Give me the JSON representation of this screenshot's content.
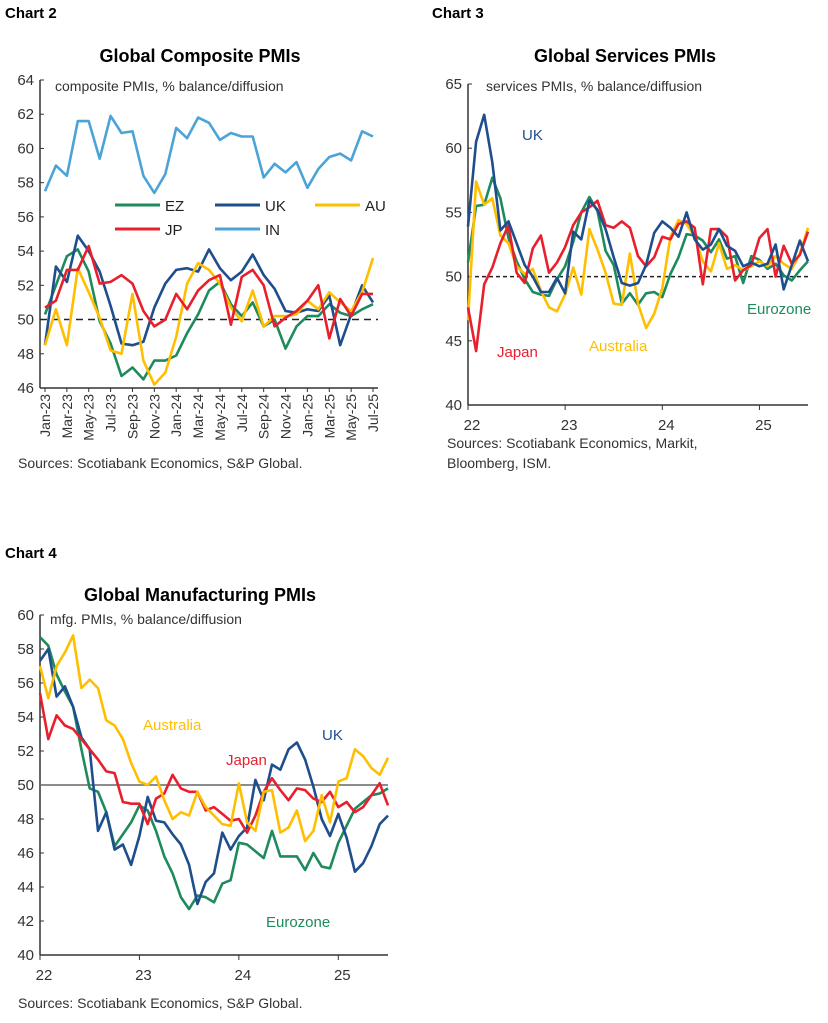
{
  "colors": {
    "EZ": "#1f8a5c",
    "UK": "#1f4e8c",
    "AU": "#ffbf00",
    "JP": "#e8202e",
    "IN": "#4ba3d8",
    "axis": "#333333",
    "ref": "#555555"
  },
  "chart_data": [
    {
      "chart_label": "Chart 2",
      "type": "line",
      "title": "Global Composite PMIs",
      "subtitle": "composite PMIs, % balance/diffusion",
      "source": "Sources: Scotiabank Economics, S&P Global.",
      "ylim": [
        46,
        64
      ],
      "yticks": [
        46,
        48,
        50,
        52,
        54,
        56,
        58,
        60,
        62,
        64
      ],
      "x": [
        "Jan-23",
        "Feb-23",
        "Mar-23",
        "Apr-23",
        "May-23",
        "Jun-23",
        "Jul-23",
        "Aug-23",
        "Sep-23",
        "Oct-23",
        "Nov-23",
        "Dec-23",
        "Jan-24",
        "Feb-24",
        "Mar-24",
        "Apr-24",
        "May-24",
        "Jun-24",
        "Jul-24",
        "Aug-24",
        "Sep-24",
        "Oct-24",
        "Nov-24",
        "Dec-24",
        "Jan-25",
        "Feb-25",
        "Mar-25",
        "Apr-25",
        "May-25",
        "Jun-25",
        "Jul-25"
      ],
      "xtick_labels": [
        "Jan-23",
        "Mar-23",
        "May-23",
        "Jul-23",
        "Sep-23",
        "Nov-23",
        "Jan-24",
        "Mar-24",
        "May-24",
        "Jul-24",
        "Sep-24",
        "Nov-24",
        "Jan-25",
        "Mar-25",
        "May-25",
        "Jul-25"
      ],
      "reference_line": 50,
      "legend": "inside",
      "series": [
        {
          "name": "IN",
          "color_key": "IN",
          "values": [
            57.5,
            59.0,
            58.4,
            61.6,
            61.6,
            59.4,
            61.9,
            60.9,
            61.0,
            58.4,
            57.4,
            58.5,
            61.2,
            60.6,
            61.8,
            61.5,
            60.5,
            60.9,
            60.7,
            60.7,
            58.3,
            59.1,
            58.6,
            59.2,
            57.7,
            58.8,
            59.5,
            59.7,
            59.3,
            61.0,
            60.7
          ]
        },
        {
          "name": "EZ",
          "color_key": "EZ",
          "values": [
            50.3,
            52.0,
            53.7,
            54.1,
            52.8,
            49.9,
            48.6,
            46.7,
            47.2,
            46.5,
            47.6,
            47.6,
            47.9,
            49.2,
            50.3,
            51.7,
            52.2,
            50.9,
            50.2,
            51.0,
            49.6,
            50.0,
            48.3,
            49.6,
            50.2,
            50.2,
            50.9,
            50.4,
            50.2,
            50.6,
            50.9
          ]
        },
        {
          "name": "UK",
          "color_key": "UK",
          "values": [
            48.5,
            53.1,
            52.2,
            54.9,
            54.0,
            52.8,
            50.8,
            48.6,
            48.5,
            48.7,
            50.7,
            52.1,
            52.9,
            53.0,
            52.8,
            54.1,
            53.0,
            52.3,
            52.8,
            53.8,
            52.6,
            51.8,
            50.5,
            50.4,
            50.6,
            50.5,
            51.4,
            48.5,
            50.3,
            52.0,
            51.0
          ]
        },
        {
          "name": "AU",
          "color_key": "AU",
          "values": [
            48.5,
            50.6,
            48.5,
            53.0,
            51.6,
            50.1,
            48.2,
            48.0,
            51.5,
            47.6,
            46.2,
            46.9,
            49.0,
            52.1,
            53.3,
            52.9,
            52.1,
            50.7,
            49.9,
            51.7,
            49.6,
            50.2,
            50.2,
            50.3,
            51.1,
            50.6,
            51.6,
            51.0,
            50.5,
            51.6,
            53.6
          ]
        },
        {
          "name": "JP",
          "color_key": "JP",
          "values": [
            50.7,
            51.1,
            52.9,
            52.9,
            54.3,
            52.1,
            52.2,
            52.6,
            52.1,
            50.5,
            49.6,
            50.0,
            51.5,
            50.6,
            51.7,
            52.3,
            52.6,
            49.7,
            52.5,
            52.9,
            52.0,
            49.6,
            50.1,
            50.5,
            51.1,
            52.0,
            48.9,
            51.2,
            50.2,
            51.5,
            51.5
          ]
        }
      ],
      "legend_entries": [
        "EZ",
        "UK",
        "AU",
        "JP",
        "IN"
      ]
    },
    {
      "chart_label": "Chart 3",
      "type": "line",
      "title": "Global Services PMIs",
      "subtitle": "services PMIs, % balance/diffusion",
      "source": "Sources: Scotiabank Economics, Markit,",
      "source2": "Bloomberg, ISM.",
      "ylim": [
        40,
        65
      ],
      "yticks": [
        40,
        45,
        50,
        55,
        60,
        65
      ],
      "x_start": "Jan-22",
      "x_end": "Jul-25",
      "frequency": "monthly",
      "xtick_labels": [
        "22",
        "23",
        "24",
        "25"
      ],
      "reference_line": 50,
      "series": [
        {
          "name": "Eurozone",
          "color_key": "EZ",
          "values": [
            51.1,
            55.5,
            55.6,
            57.7,
            56.1,
            53.0,
            51.2,
            49.8,
            48.8,
            48.6,
            48.5,
            49.8,
            50.8,
            52.7,
            55.0,
            56.2,
            55.1,
            52.0,
            50.9,
            47.9,
            48.7,
            47.8,
            48.7,
            48.8,
            48.4,
            50.2,
            51.5,
            53.3,
            53.2,
            52.8,
            51.9,
            52.9,
            51.4,
            51.6,
            49.5,
            51.6,
            51.3,
            50.6,
            51.0,
            50.1,
            49.7,
            50.5,
            51.2
          ]
        },
        {
          "name": "Australia",
          "color_key": "AU",
          "values": [
            46.6,
            57.4,
            55.6,
            56.1,
            53.2,
            52.6,
            50.8,
            50.2,
            50.6,
            48.9,
            47.6,
            47.3,
            48.6,
            50.7,
            48.6,
            53.7,
            52.1,
            50.3,
            47.9,
            47.8,
            51.8,
            47.9,
            46.0,
            47.1,
            49.1,
            53.1,
            54.4,
            54.1,
            53.1,
            51.2,
            50.4,
            52.6,
            50.6,
            50.9,
            50.5,
            50.8,
            51.2,
            50.8,
            51.6,
            51.0,
            50.6,
            51.8,
            53.8
          ]
        },
        {
          "name": "Japan",
          "color_key": "JP",
          "values": [
            47.6,
            44.2,
            49.4,
            50.7,
            52.6,
            54.0,
            50.3,
            49.5,
            52.2,
            53.2,
            50.3,
            51.1,
            52.3,
            54.0,
            55.0,
            55.4,
            55.9,
            54.0,
            53.8,
            54.3,
            53.8,
            51.6,
            50.8,
            51.5,
            53.1,
            52.9,
            54.1,
            54.3,
            53.8,
            49.4,
            53.7,
            53.7,
            53.1,
            49.7,
            50.5,
            50.9,
            53.0,
            53.7,
            50.0,
            52.4,
            51.0,
            51.7,
            53.5
          ]
        },
        {
          "name": "UK",
          "color_key": "UK",
          "values": [
            53.9,
            60.5,
            62.6,
            58.9,
            53.6,
            54.3,
            52.6,
            50.9,
            50.0,
            48.8,
            48.8,
            49.9,
            48.7,
            53.5,
            52.9,
            55.9,
            55.2,
            53.7,
            51.5,
            49.5,
            49.3,
            49.5,
            50.9,
            53.4,
            54.3,
            53.8,
            53.1,
            55.0,
            52.9,
            52.1,
            52.5,
            53.7,
            52.4,
            52.0,
            50.8,
            51.1,
            50.8,
            51.0,
            52.5,
            49.0,
            50.9,
            52.8,
            51.2
          ]
        }
      ]
    },
    {
      "chart_label": "Chart 4",
      "type": "line",
      "title": "Global Manufacturing PMIs",
      "subtitle": "mfg. PMIs, % balance/diffusion",
      "source": "Sources: Scotiabank Economics, S&P Global.",
      "ylim": [
        40,
        60
      ],
      "yticks": [
        40,
        42,
        44,
        46,
        48,
        50,
        52,
        54,
        56,
        58,
        60
      ],
      "x_start": "Jan-22",
      "x_end": "Jul-25",
      "frequency": "monthly",
      "xtick_labels": [
        "22",
        "23",
        "24",
        "25"
      ],
      "reference_line": 50,
      "series": [
        {
          "name": "Eurozone",
          "color_key": "EZ",
          "values": [
            58.7,
            58.2,
            56.5,
            55.5,
            54.6,
            52.1,
            49.8,
            49.6,
            48.4,
            46.4,
            47.1,
            47.8,
            48.8,
            48.5,
            47.3,
            45.8,
            44.8,
            43.4,
            42.7,
            43.5,
            43.4,
            43.1,
            44.2,
            44.4,
            46.6,
            46.5,
            46.1,
            45.7,
            47.3,
            45.8,
            45.8,
            45.8,
            45.0,
            46.0,
            45.2,
            45.1,
            46.6,
            47.6,
            48.6,
            49.0,
            49.4,
            49.5,
            49.8
          ]
        },
        {
          "name": "UK",
          "color_key": "UK",
          "values": [
            57.3,
            58.0,
            55.2,
            55.8,
            54.6,
            52.8,
            52.1,
            47.3,
            48.4,
            46.2,
            46.5,
            45.3,
            47.0,
            49.3,
            47.9,
            47.8,
            47.1,
            46.5,
            45.3,
            43.0,
            44.3,
            44.8,
            47.2,
            46.2,
            47.0,
            47.5,
            50.3,
            49.1,
            51.2,
            50.9,
            52.1,
            52.5,
            51.5,
            49.9,
            48.0,
            47.0,
            48.3,
            46.9,
            44.9,
            45.4,
            46.4,
            47.7,
            48.2
          ]
        },
        {
          "name": "Japan",
          "color_key": "JP",
          "values": [
            55.4,
            52.7,
            54.1,
            53.5,
            53.3,
            52.7,
            52.1,
            51.5,
            50.8,
            50.7,
            49.0,
            48.9,
            48.9,
            47.7,
            49.2,
            49.5,
            50.6,
            49.8,
            49.6,
            49.6,
            48.5,
            48.7,
            48.3,
            47.9,
            48.0,
            47.2,
            48.2,
            49.6,
            50.4,
            49.7,
            49.1,
            49.8,
            49.7,
            49.2,
            49.0,
            49.6,
            48.7,
            49.0,
            48.4,
            48.7,
            49.4,
            50.1,
            48.8
          ]
        },
        {
          "name": "Australia",
          "color_key": "AU",
          "values": [
            57.0,
            55.1,
            57.0,
            57.8,
            58.8,
            55.7,
            56.2,
            55.7,
            53.8,
            53.5,
            52.7,
            51.3,
            50.2,
            50.0,
            50.5,
            49.1,
            48.0,
            48.4,
            48.2,
            49.6,
            48.7,
            48.2,
            47.7,
            47.6,
            50.1,
            47.8,
            47.3,
            49.6,
            49.7,
            47.2,
            47.5,
            48.5,
            46.7,
            47.3,
            49.4,
            47.8,
            50.2,
            50.4,
            52.1,
            51.7,
            51.0,
            50.6,
            51.6
          ]
        }
      ]
    }
  ]
}
